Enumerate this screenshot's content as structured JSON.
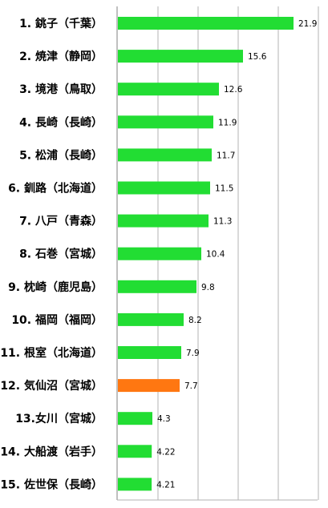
{
  "chart_data": {
    "type": "bar",
    "orientation": "horizontal",
    "title": "",
    "xlabel": "",
    "ylabel": "",
    "xlim": [
      0,
      25
    ],
    "grid": true,
    "legend": "none",
    "categories": [
      "1. 銚子（千葉）",
      "2. 焼津（静岡）",
      "3. 境港（鳥取）",
      "4. 長崎（長崎）",
      "5. 松浦（長崎）",
      "6. 釧路（北海道）",
      "7. 八戸（青森）",
      "8. 石巻（宮城）",
      "9. 枕崎（鹿児島）",
      "10. 福岡（福岡）",
      "11. 根室（北海道）",
      "12. 気仙沼（宮城）",
      "13.女川（宮城）",
      "14. 大船渡（岩手）",
      "15. 佐世保（長崎）"
    ],
    "values": [
      21.9,
      15.6,
      12.6,
      11.9,
      11.7,
      11.5,
      11.3,
      10.4,
      9.8,
      8.2,
      7.9,
      7.7,
      4.3,
      4.22,
      4.21
    ],
    "value_labels": [
      "21.9",
      "15.6",
      "12.6",
      "11.9",
      "11.7",
      "11.5",
      "11.3",
      "10.4",
      "9.8",
      "8.2",
      "7.9",
      "7.7",
      "4.3",
      "4.22",
      "4.21"
    ],
    "highlight_index": 11,
    "colors": {
      "bar": "#22dd33",
      "highlight": "#ff7711",
      "grid": "#b3b3b3"
    }
  }
}
